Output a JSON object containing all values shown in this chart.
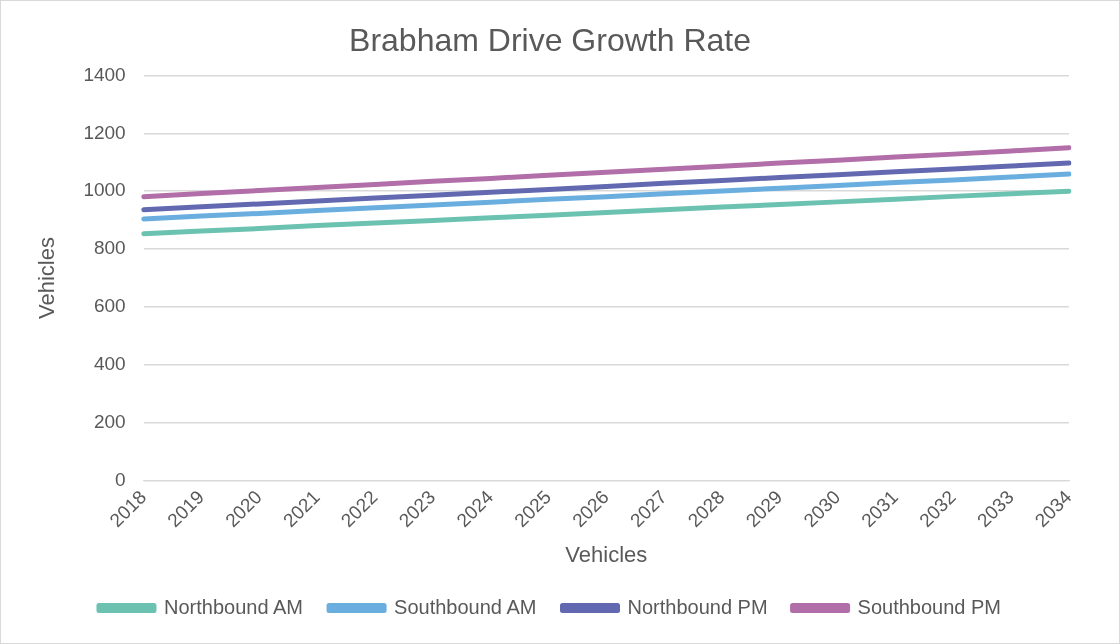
{
  "chart_data": {
    "type": "line",
    "title": "Brabham Drive Growth Rate",
    "xlabel": "Vehicles",
    "ylabel": "Vehicles",
    "categories": [
      "2018",
      "2019",
      "2020",
      "2021",
      "2022",
      "2023",
      "2024",
      "2025",
      "2026",
      "2027",
      "2028",
      "2029",
      "2030",
      "2031",
      "2032",
      "2033",
      "2034"
    ],
    "series": [
      {
        "name": "Northbound AM",
        "color": "#6cc2b0",
        "values": [
          853,
          862,
          871,
          881,
          890,
          899,
          908,
          917,
          926,
          936,
          945,
          954,
          963,
          972,
          982,
          991,
          1000
        ]
      },
      {
        "name": "Southbound AM",
        "color": "#6aaee0",
        "values": [
          904,
          914,
          923,
          933,
          943,
          952,
          962,
          972,
          981,
          991,
          1001,
          1010,
          1020,
          1030,
          1039,
          1049,
          1059
        ]
      },
      {
        "name": "Northbound PM",
        "color": "#6369b0",
        "values": [
          936,
          946,
          956,
          966,
          976,
          986,
          996,
          1006,
          1016,
          1027,
          1037,
          1047,
          1057,
          1067,
          1077,
          1087,
          1097
        ]
      },
      {
        "name": "Southbound PM",
        "color": "#b26ea8",
        "values": [
          981,
          992,
          1002,
          1013,
          1023,
          1034,
          1044,
          1055,
          1065,
          1076,
          1086,
          1097,
          1107,
          1118,
          1128,
          1139,
          1150
        ]
      }
    ],
    "ylim": [
      0,
      1400
    ],
    "yticks": [
      0,
      200,
      400,
      600,
      800,
      1000,
      1200,
      1400
    ],
    "grid": "y",
    "legend": "bottom",
    "marker": "none",
    "line_style": "solid"
  }
}
